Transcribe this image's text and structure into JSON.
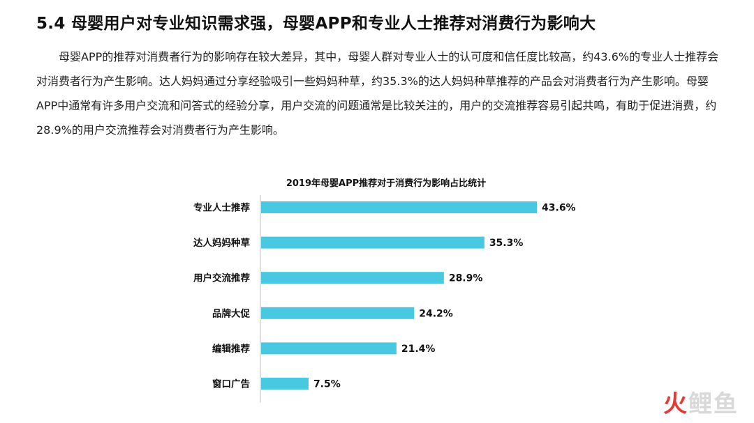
{
  "page": {
    "title": "5.4 母婴用户对专业知识需求强，母婴APP和专业人士推荐对消费行为影响大",
    "paragraph": "母婴APP的推荐对消费者行为的影响存在较大差异，其中，母婴人群对专业人士的认可度和信任度比较高，约43.6%的专业人士推荐会对消费者行为产生影响。达人妈妈通过分享经验吸引一些妈妈种草，约35.3%的达人妈妈种草推荐的产品会对消费者行为产生影响。母婴APP中通常有许多用户交流和问答式的经验分享，用户交流的问题通常是比较关注的，用户的交流推荐容易引起共鸣，有助于促进消费，约28.9%的用户交流推荐会对消费者行为产生影响。"
  },
  "chart_data": {
    "type": "bar",
    "orientation": "horizontal",
    "title": "2019年母婴APP推荐对于消费行为影响占比统计",
    "categories": [
      "专业人士推荐",
      "达人妈妈种草",
      "用户交流推荐",
      "品牌大促",
      "编辑推荐",
      "窗口广告"
    ],
    "values": [
      43.6,
      35.3,
      28.9,
      24.2,
      21.4,
      7.5
    ],
    "value_labels": [
      "43.6%",
      "35.3%",
      "28.9%",
      "24.2%",
      "21.4%",
      "7.5%"
    ],
    "unit": "%",
    "xlim": [
      0,
      45
    ],
    "bar_color": "#49c8e2",
    "grid": false,
    "legend": "none"
  },
  "watermark": {
    "part1": "火",
    "part2": "鲤鱼"
  }
}
